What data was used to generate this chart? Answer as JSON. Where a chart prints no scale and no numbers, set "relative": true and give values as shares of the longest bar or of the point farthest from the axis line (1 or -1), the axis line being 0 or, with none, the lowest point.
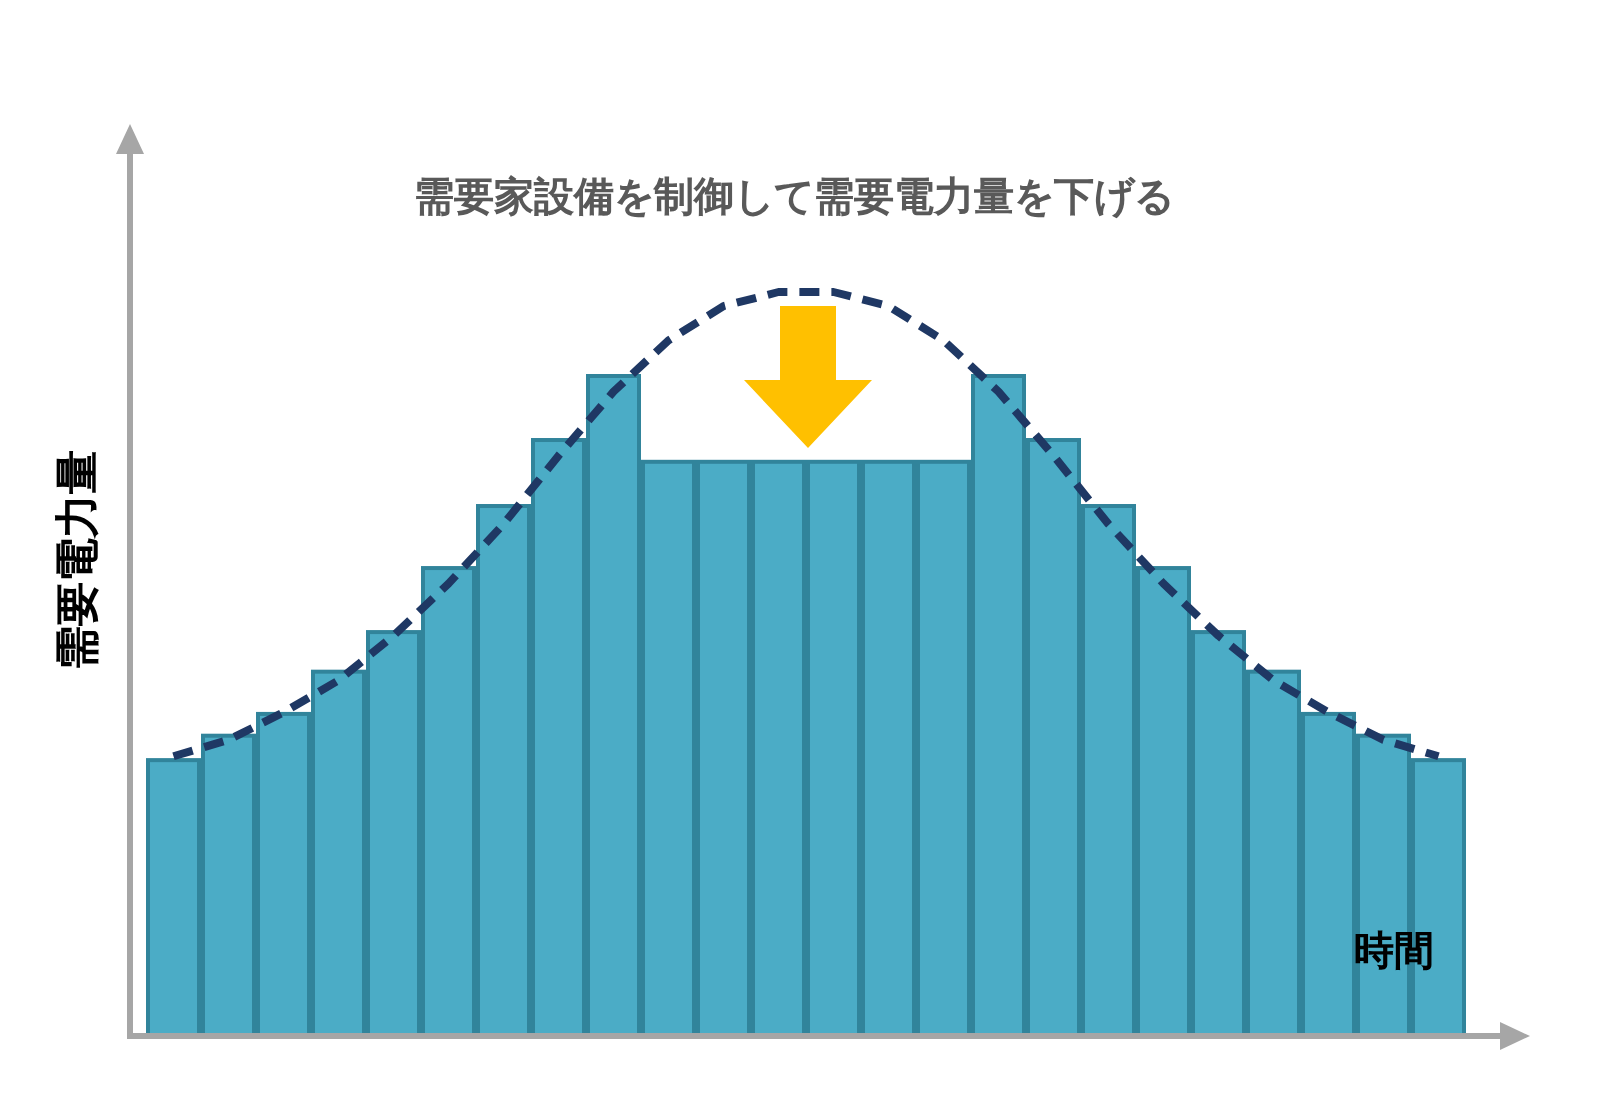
{
  "chart_data": [
    {
      "type": "bar",
      "relative": true,
      "color": "#4bacc6",
      "title": "需要家設備を制御して需要電力量を下げる",
      "xlabel": "時間",
      "ylabel": "需要電力量",
      "categories": [
        null,
        null,
        null,
        null,
        null,
        null,
        null,
        null,
        null,
        null,
        null,
        null,
        null,
        null,
        null,
        null,
        null,
        null,
        null,
        null,
        null,
        null,
        null,
        null
      ],
      "values": [
        0.418,
        0.455,
        0.488,
        0.552,
        0.612,
        0.709,
        0.803,
        0.903,
        1,
        0.87,
        0.87,
        0.87,
        0.87,
        0.87,
        0.87,
        1,
        0.903,
        0.803,
        0.709,
        0.612,
        0.552,
        0.488,
        0.455,
        0.418
      ]
    },
    {
      "type": "line",
      "relative": true,
      "color": "#1f3864",
      "line_style": "dashed",
      "categories": [
        null,
        null,
        null,
        null,
        null,
        null,
        null,
        null,
        null,
        null,
        null,
        null,
        null,
        null,
        null,
        null,
        null,
        null,
        null,
        null,
        null,
        null,
        null,
        null
      ],
      "values": [
        0.376,
        0.398,
        0.435,
        0.478,
        0.538,
        0.608,
        0.688,
        0.78,
        0.866,
        0.935,
        0.981,
        1,
        1,
        0.981,
        0.935,
        0.866,
        0.78,
        0.688,
        0.608,
        0.538,
        0.478,
        0.435,
        0.398,
        0.376
      ]
    }
  ]
}
